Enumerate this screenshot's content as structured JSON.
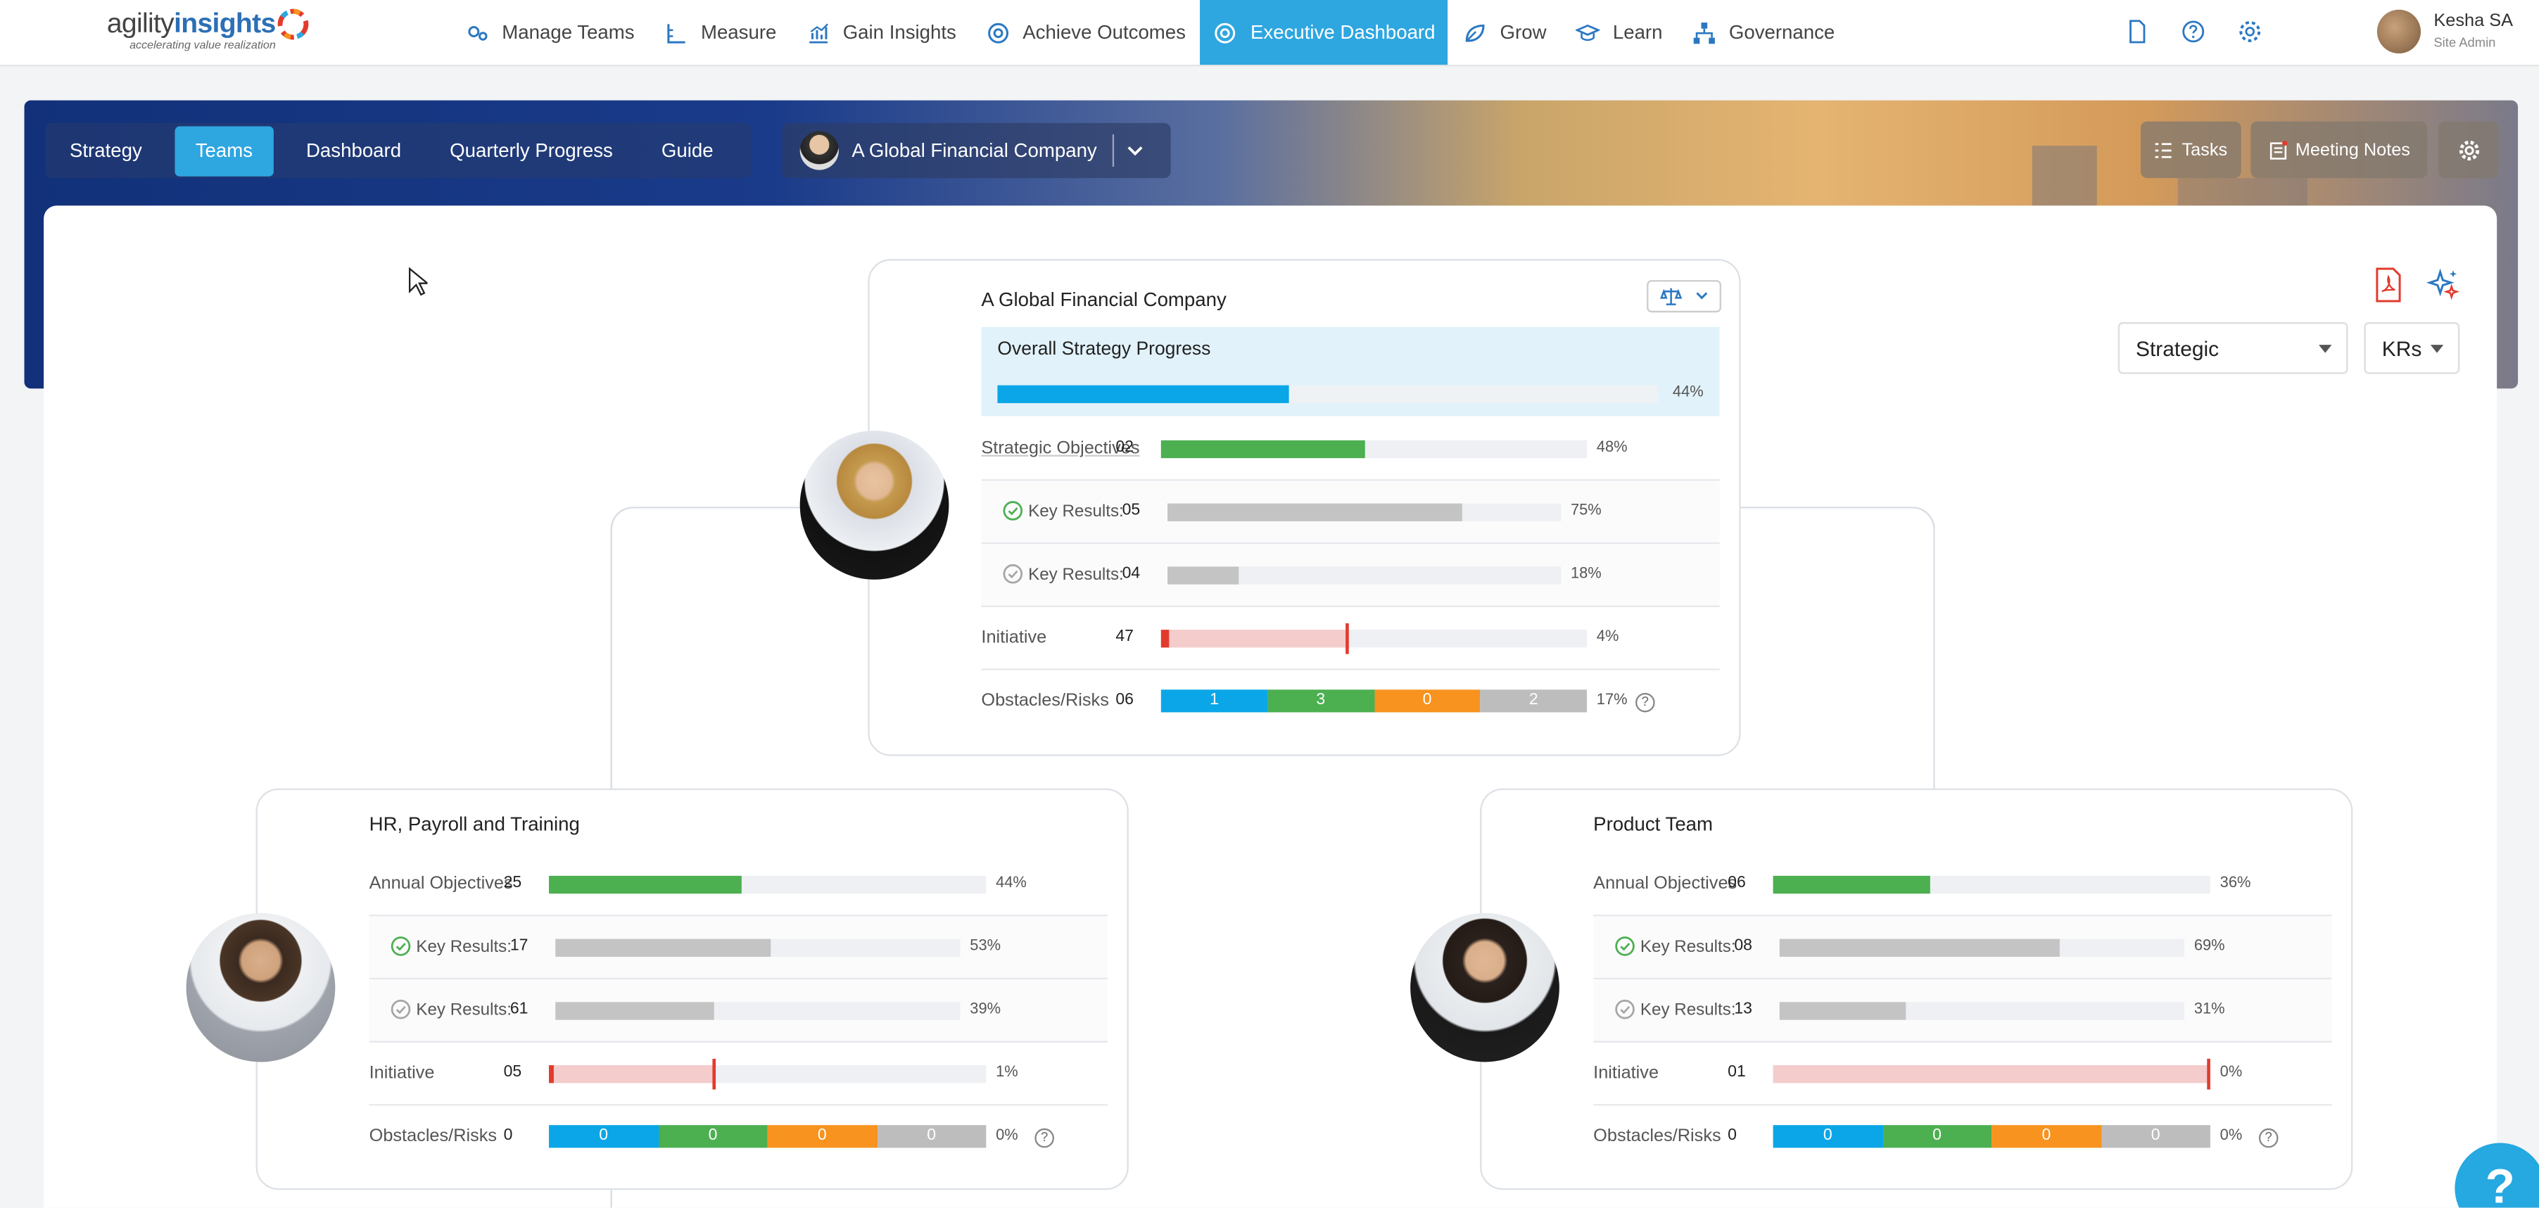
{
  "brand": {
    "logo_pre": "agility",
    "logo_bold": "insights",
    "tagline": "accelerating value realization"
  },
  "nav": {
    "items": [
      {
        "label": "Manage Teams",
        "icon": "gear-people-icon"
      },
      {
        "label": "Measure",
        "icon": "ruler-icon"
      },
      {
        "label": "Gain Insights",
        "icon": "chart-icon"
      },
      {
        "label": "Achieve Outcomes",
        "icon": "target-icon"
      },
      {
        "label": "Executive Dashboard",
        "icon": "target-icon",
        "active": true
      },
      {
        "label": "Grow",
        "icon": "leaf-icon"
      },
      {
        "label": "Learn",
        "icon": "graduation-cap-icon"
      },
      {
        "label": "Governance",
        "icon": "hierarchy-icon"
      }
    ]
  },
  "user": {
    "name": "Kesha SA",
    "role": "Site Admin"
  },
  "subnav": {
    "tabs": [
      "Strategy",
      "Teams",
      "Dashboard",
      "Quarterly Progress",
      "Guide"
    ],
    "active": "Teams"
  },
  "org_selector": {
    "label": "A Global Financial Company"
  },
  "buttons": {
    "tasks": "Tasks",
    "meeting_notes": "Meeting Notes"
  },
  "filters": {
    "view": "Strategic",
    "measure": "KRs"
  },
  "top_team": {
    "title": "A Global Financial Company",
    "overall_label": "Overall Strategy Progress",
    "overall_pct": "44%",
    "overall_value": 0.44,
    "rows": [
      {
        "label": "Strategic Objectives",
        "count": "02",
        "pct": "48%",
        "value": 0.48
      },
      {
        "label": "Key Results:",
        "count": "05",
        "pct": "75%",
        "value": 0.75
      },
      {
        "label": "Key Results:",
        "count": "04",
        "pct": "18%",
        "value": 0.18
      },
      {
        "label": "Initiative",
        "count": "47",
        "pct": "4%",
        "value": 0.04,
        "marker": 0.44
      },
      {
        "label": "Obstacles/Risks",
        "count": "06",
        "pct": "17%",
        "segments": [
          "1",
          "3",
          "0",
          "2"
        ]
      }
    ]
  },
  "left_team": {
    "title": "HR, Payroll and Training",
    "rows": [
      {
        "label": "Annual Objectives",
        "count": "25",
        "pct": "44%",
        "value": 0.44
      },
      {
        "label": "Key Results:",
        "count": "17",
        "pct": "53%",
        "value": 0.53
      },
      {
        "label": "Key Results:",
        "count": "61",
        "pct": "39%",
        "value": 0.39
      },
      {
        "label": "Initiative",
        "count": "05",
        "pct": "1%",
        "value": 0.01,
        "marker": 0.38
      },
      {
        "label": "Obstacles/Risks",
        "count": "0",
        "pct": "0%",
        "segments": [
          "0",
          "0",
          "0",
          "0"
        ]
      }
    ]
  },
  "right_team": {
    "title": "Product Team",
    "rows": [
      {
        "label": "Annual Objectives",
        "count": "06",
        "pct": "36%",
        "value": 0.36
      },
      {
        "label": "Key Results:",
        "count": "08",
        "pct": "69%",
        "value": 0.69
      },
      {
        "label": "Key Results:",
        "count": "13",
        "pct": "31%",
        "value": 0.31
      },
      {
        "label": "Initiative",
        "count": "01",
        "pct": "0%",
        "value": 0.0,
        "marker": 1.0
      },
      {
        "label": "Obstacles/Risks",
        "count": "0",
        "pct": "0%",
        "segments": [
          "0",
          "0",
          "0",
          "0"
        ]
      }
    ]
  },
  "colors": {
    "accent": "#2ea6e0",
    "green": "#4caf50",
    "gray": "#c4c4c4",
    "red": "#e23b2e",
    "pink": "#f4cccc",
    "blue": "#0aa6e8",
    "orange": "#f7931e",
    "lightgray": "#bdbdbd"
  },
  "help": {
    "label": "?"
  }
}
